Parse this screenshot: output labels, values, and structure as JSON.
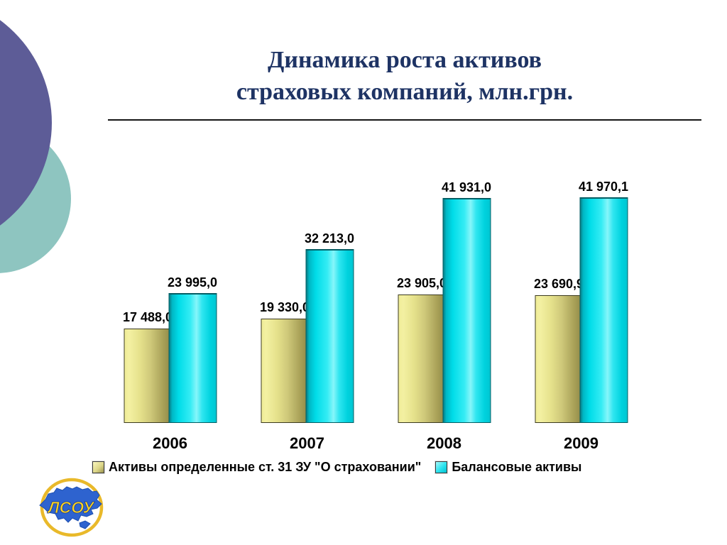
{
  "slide": {
    "title_line1": "Динамика роста активов",
    "title_line2": "страховых компаний, млн.грн."
  },
  "chart_data": {
    "type": "bar",
    "title": "Динамика роста активов страховых компаний, млн.грн.",
    "unit": "млн.грн.",
    "categories": [
      "2006",
      "2007",
      "2008",
      "2009"
    ],
    "series": [
      {
        "name": "Активы определенные ст. 31 ЗУ \"О страховании\"",
        "color": "#c9bf6e",
        "values": [
          17488.0,
          19330.0,
          23905.0,
          23690.9
        ],
        "labels": [
          "17 488,0",
          "19 330,0",
          "23 905,0",
          "23 690,9"
        ]
      },
      {
        "name": "Балансовые активы",
        "color": "#00dce8",
        "values": [
          23995.0,
          32213.0,
          41931.0,
          41970.1
        ],
        "labels": [
          "23 995,0",
          "32 213,0",
          "41 931,0",
          "41 970,1"
        ]
      }
    ],
    "ylim": [
      0,
      45000
    ],
    "grid": false,
    "legend_position": "bottom",
    "data_labels": true
  },
  "logo": {
    "text": "ЛСОУ"
  },
  "colors": {
    "title_text": "#1e3364",
    "series_yellow": "#c9bf6e",
    "series_cyan": "#00dce8",
    "decor_circle_purple": "#5d5c97",
    "decor_circle_teal": "#8ec5c0",
    "logo_ring": "#e9b92a",
    "logo_map": "#2e63cf",
    "logo_text": "#ffd21e"
  }
}
